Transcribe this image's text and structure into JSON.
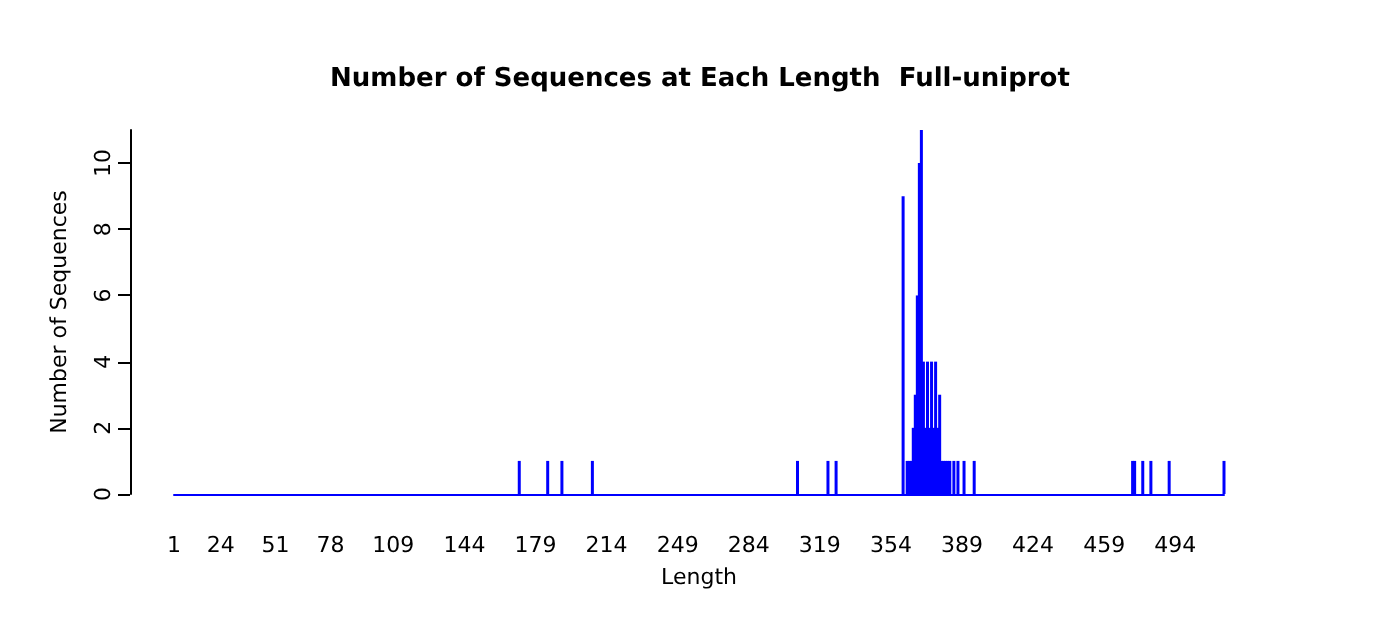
{
  "chart_data": {
    "type": "bar",
    "title": "Number of Sequences at Each Length  Full-uniprot",
    "xlabel": "Length",
    "ylabel": "Number of Sequences",
    "x": [
      171,
      185,
      192,
      207,
      308,
      323,
      327,
      360,
      362,
      363,
      364,
      365,
      366,
      367,
      368,
      369,
      370,
      371,
      372,
      373,
      374,
      375,
      376,
      377,
      378,
      379,
      380,
      381,
      382,
      383,
      385,
      387,
      390,
      395,
      473,
      474,
      478,
      482,
      491,
      518
    ],
    "values": [
      1,
      1,
      1,
      1,
      1,
      1,
      1,
      9,
      1,
      1,
      1,
      2,
      3,
      6,
      10,
      11,
      4,
      2,
      4,
      2,
      4,
      2,
      4,
      2,
      3,
      1,
      1,
      1,
      1,
      1,
      1,
      1,
      1,
      1,
      1,
      1,
      1,
      1,
      1,
      1
    ],
    "color": "#0000ff",
    "xlim": [
      1,
      518
    ],
    "xticks": [
      1,
      24,
      51,
      78,
      109,
      144,
      179,
      214,
      249,
      284,
      319,
      354,
      389,
      424,
      459,
      494
    ],
    "ylim": [
      0,
      11
    ],
    "yticks": [
      0,
      2,
      4,
      6,
      8,
      10
    ],
    "grid": false
  }
}
